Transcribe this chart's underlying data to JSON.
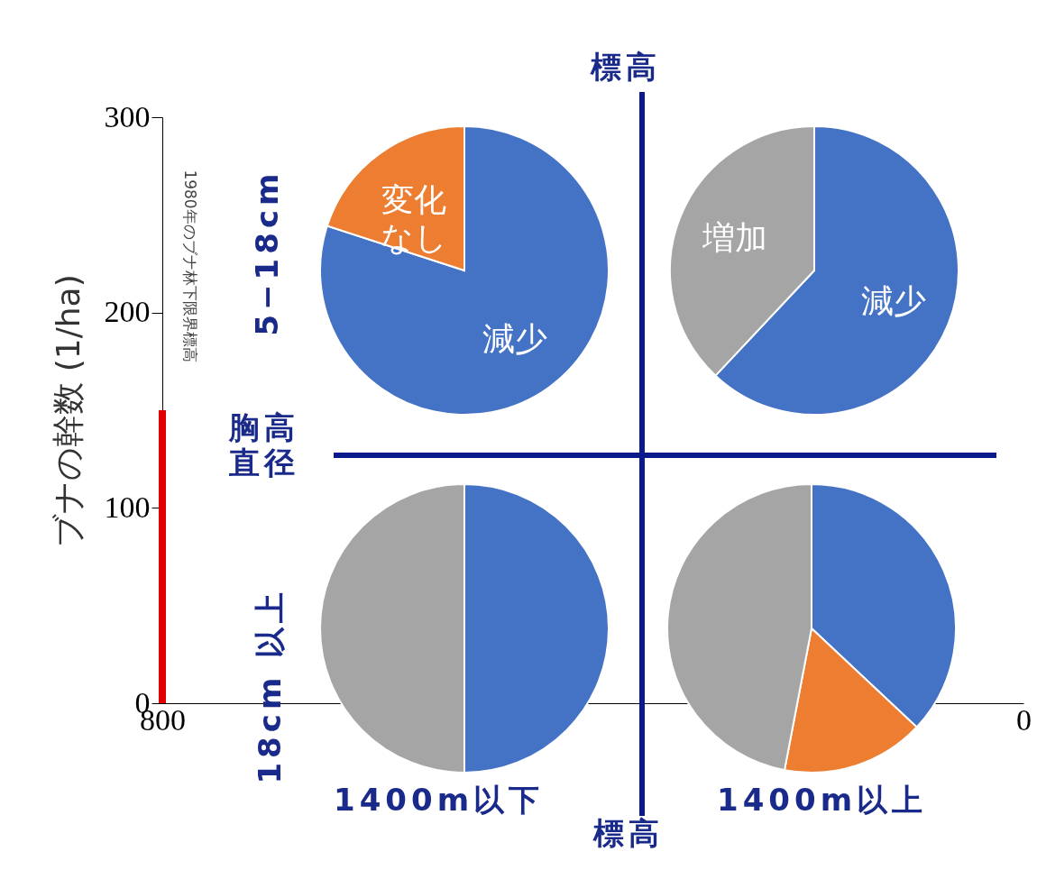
{
  "chart_data": [
    {
      "type": "bar",
      "ylabel": "ブナの幹数 (1/ha)",
      "categories": [
        "800",
        "0"
      ],
      "ylim": [
        0,
        300
      ],
      "yticks": [
        0,
        100,
        200,
        300
      ],
      "grid": false,
      "series": [
        {
          "color": "#e00000",
          "values": [
            150,
            null
          ]
        }
      ],
      "annotations": [
        "1980年のブナ林下限界標高"
      ]
    },
    {
      "type": "pie",
      "categories": [
        "減少",
        "変化なし"
      ],
      "values": [
        80,
        20
      ],
      "colors": [
        "#4472c4",
        "#ed7d31"
      ]
    },
    {
      "type": "pie",
      "categories": [
        "減少",
        "増加"
      ],
      "values": [
        62,
        38
      ],
      "colors": [
        "#4472c4",
        "#a5a5a5"
      ]
    },
    {
      "type": "pie",
      "categories": [
        null,
        null
      ],
      "values": [
        50,
        50
      ],
      "colors": [
        "#4472c4",
        "#a5a5a5"
      ]
    },
    {
      "type": "pie",
      "categories": [
        null,
        null,
        null
      ],
      "values": [
        37,
        16,
        47
      ],
      "colors": [
        "#4472c4",
        "#ed7d31",
        "#a5a5a5"
      ]
    },
    {
      "type": "other",
      "annotations": [
        "標高",
        "標高",
        "5−18cm",
        "胸高直径",
        "18cm 以上",
        "1400m以下",
        "1400m以上"
      ]
    }
  ]
}
